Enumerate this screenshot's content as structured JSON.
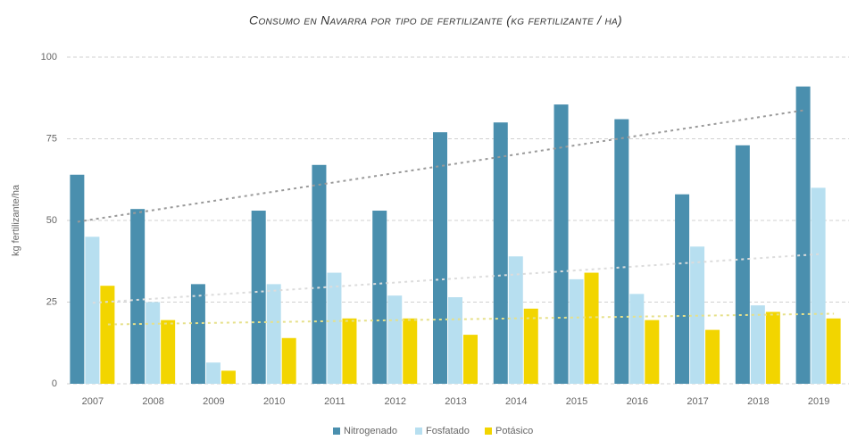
{
  "chart_data": {
    "type": "bar",
    "title": "Consumo en Navarra por tipo de fertilizante (kg fertilizante / ha)",
    "y_label": "kg fertilizante/ha",
    "categories": [
      "2007",
      "2008",
      "2009",
      "2010",
      "2011",
      "2012",
      "2013",
      "2014",
      "2015",
      "2016",
      "2017",
      "2018",
      "2019"
    ],
    "series": [
      {
        "name": "Nitrogenado",
        "color": "#4a8fae",
        "trend_color": "#9a9a9a",
        "values": [
          64,
          53.5,
          30.5,
          53,
          67,
          53,
          77,
          80,
          85.5,
          81,
          58,
          73,
          91
        ]
      },
      {
        "name": "Fosfatado",
        "color": "#b7dff0",
        "trend_color": "#dcdcdc",
        "values": [
          45,
          25,
          6.5,
          30.5,
          34,
          27,
          26.5,
          39,
          32,
          27.5,
          42,
          24,
          60
        ]
      },
      {
        "name": "Potásico",
        "color": "#f2d500",
        "trend_color": "#e6e08a",
        "values": [
          30,
          19.5,
          4,
          14,
          20,
          20,
          15,
          23,
          34,
          19.5,
          16.5,
          22,
          20
        ]
      }
    ],
    "ylim": [
      0,
      100
    ],
    "yticks": [
      0,
      25,
      50,
      75,
      100
    ],
    "grid": true,
    "trendline": true,
    "legend": "bottom"
  }
}
